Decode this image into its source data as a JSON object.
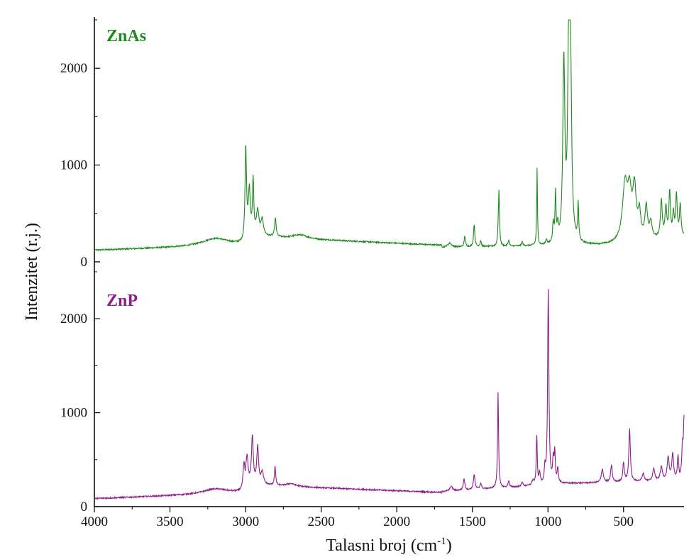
{
  "chart_data": {
    "type": "line",
    "xlabel": "Talasni broj (cm",
    "xlabel_sup": "-1",
    "xlabel_end": ")",
    "ylabel": "Intenzitet (r.j.)",
    "xlim": [
      4000,
      100
    ],
    "x_reversed": true,
    "x_ticks": [
      4000,
      3500,
      3000,
      2500,
      2000,
      1500,
      1000,
      500
    ],
    "x_tick_labels": [
      "4000",
      "3500",
      "3000",
      "2500",
      "2000",
      "1500",
      "1000",
      "500"
    ],
    "panels": [
      {
        "name": "ZnAs",
        "color": "#1f8a1f",
        "ylim": [
          0,
          2500
        ],
        "y_ticks": [
          0,
          1000,
          2000
        ],
        "y_tick_labels": [
          "0",
          "1000",
          "2000"
        ],
        "peaks": [
          [
            3200,
            80,
            110
          ],
          [
            2999,
            900,
            6
          ],
          [
            2975,
            450,
            7
          ],
          [
            2950,
            560,
            5
          ],
          [
            2920,
            250,
            10
          ],
          [
            2890,
            160,
            10
          ],
          [
            2803,
            190,
            6
          ],
          [
            2640,
            40,
            60
          ],
          [
            1650,
            40,
            15
          ],
          [
            1550,
            110,
            5
          ],
          [
            1488,
            230,
            5
          ],
          [
            1445,
            60,
            5
          ],
          [
            1330,
            90,
            4
          ],
          [
            1324,
            560,
            4
          ],
          [
            1260,
            60,
            5
          ],
          [
            1170,
            40,
            5
          ],
          [
            1072,
            800,
            3
          ],
          [
            1010,
            50,
            5
          ],
          [
            965,
            200,
            5
          ],
          [
            950,
            500,
            4
          ],
          [
            935,
            150,
            5
          ],
          [
            895,
            1850,
            8
          ],
          [
            862,
            2200,
            8
          ],
          [
            850,
            1500,
            8
          ],
          [
            800,
            380,
            4
          ],
          [
            490,
            580,
            20
          ],
          [
            460,
            420,
            15
          ],
          [
            428,
            520,
            14
          ],
          [
            395,
            250,
            10
          ],
          [
            350,
            330,
            10
          ],
          [
            320,
            160,
            10
          ],
          [
            250,
            380,
            7
          ],
          [
            220,
            300,
            7
          ],
          [
            195,
            460,
            6
          ],
          [
            170,
            230,
            6
          ],
          [
            150,
            420,
            6
          ],
          [
            125,
            320,
            6
          ]
        ]
      },
      {
        "name": "ZnP",
        "color": "#8e1e8e",
        "ylim": [
          0,
          2500
        ],
        "y_ticks": [
          0,
          1000,
          2000
        ],
        "y_tick_labels": [
          "0",
          "1000",
          "2000"
        ],
        "peaks": [
          [
            3200,
            55,
            100
          ],
          [
            3010,
            280,
            8
          ],
          [
            2990,
            260,
            7
          ],
          [
            2955,
            500,
            7
          ],
          [
            2920,
            400,
            7
          ],
          [
            2890,
            130,
            10
          ],
          [
            2805,
            200,
            5
          ],
          [
            2700,
            30,
            40
          ],
          [
            1640,
            50,
            10
          ],
          [
            1555,
            120,
            6
          ],
          [
            1488,
            160,
            6
          ],
          [
            1445,
            60,
            6
          ],
          [
            1330,
            1020,
            4
          ],
          [
            1260,
            70,
            5
          ],
          [
            1170,
            50,
            5
          ],
          [
            1100,
            50,
            8
          ],
          [
            1074,
            520,
            4
          ],
          [
            1055,
            120,
            5
          ],
          [
            1020,
            160,
            5
          ],
          [
            998,
            2050,
            5
          ],
          [
            965,
            250,
            5
          ],
          [
            955,
            320,
            4
          ],
          [
            935,
            150,
            5
          ],
          [
            640,
            140,
            8
          ],
          [
            580,
            180,
            6
          ],
          [
            500,
            200,
            6
          ],
          [
            460,
            560,
            6
          ],
          [
            370,
            80,
            8
          ],
          [
            300,
            130,
            8
          ],
          [
            250,
            150,
            8
          ],
          [
            205,
            240,
            8
          ],
          [
            175,
            280,
            7
          ],
          [
            140,
            250,
            5
          ],
          [
            110,
            350,
            6
          ],
          [
            100,
            600,
            4
          ]
        ]
      }
    ]
  }
}
